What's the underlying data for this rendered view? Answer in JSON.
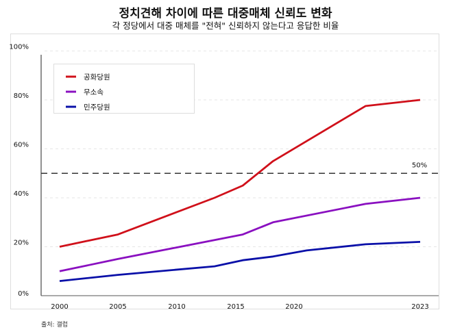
{
  "chart_data": {
    "type": "line",
    "title": "정치견해 차이에 따른 대중매체 신뢰도 변화",
    "subtitle": "각 정당에서 대중 매체를 \"전혀\" 신뢰하지 않는다고 응답한 비율",
    "source": "출처: 갤럽",
    "xlabel": "",
    "ylabel": "",
    "x_ticks": [
      "2000",
      "2005",
      "2010",
      "2015",
      "2020",
      "2023"
    ],
    "y_ticks": [
      "0%",
      "20%",
      "40%",
      "60%",
      "80%",
      "100%"
    ],
    "ylim": [
      0,
      100
    ],
    "grid": "horizontal dashed light",
    "legend_position": "top-left",
    "reference_line": {
      "value": 50,
      "label": "50%",
      "style": "dashed",
      "color": "#333333"
    },
    "series": [
      {
        "name": "공화당원",
        "color": "#d0101a",
        "x": [
          2000,
          2005,
          2013.2,
          2015.6,
          2018.2,
          2021.7,
          2023
        ],
        "y": [
          20,
          25,
          40,
          45,
          55,
          77.5,
          80
        ]
      },
      {
        "name": "무소속",
        "color": "#8a10c0",
        "x": [
          2000,
          2005,
          2015.6,
          2018.2,
          2021.7,
          2023
        ],
        "y": [
          10,
          15,
          25,
          30,
          37.5,
          40
        ]
      },
      {
        "name": "민주당원",
        "color": "#0a10a8",
        "x": [
          2000,
          2005,
          2013.2,
          2015.6,
          2018.2,
          2020.3,
          2021.7,
          2023
        ],
        "y": [
          6,
          8.5,
          12,
          14.5,
          16,
          18.5,
          21,
          22
        ]
      }
    ]
  }
}
